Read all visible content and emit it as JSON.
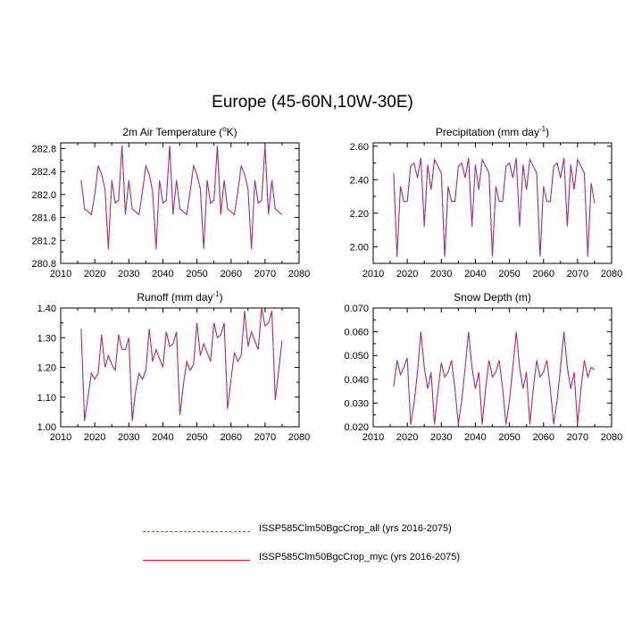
{
  "title": "Europe (45-60N,10W-30E)",
  "colors": {
    "series_all": "#4d4dff",
    "series_myc": "#ff0000",
    "axis": "#000000"
  },
  "legend": [
    {
      "label": "ISSP585Clm50BgcCrop_all (yrs 2016-2075)",
      "style": "dashed",
      "color": "#4d4dff"
    },
    {
      "label": "ISSP585Clm50BgcCrop_myc (yrs 2016-2075)",
      "style": "solid",
      "color": "#ff0000"
    }
  ],
  "chart_data": [
    {
      "type": "line",
      "title": "2m Air Temperature (°K)",
      "title_parts": [
        "2m Air Temperature (",
        "o",
        "K)"
      ],
      "xlim": [
        2010,
        2080
      ],
      "ylim": [
        280.8,
        282.9
      ],
      "xticks": [
        2010,
        2020,
        2030,
        2040,
        2050,
        2060,
        2070,
        2080
      ],
      "yticks": [
        280.8,
        281.2,
        281.6,
        282.0,
        282.4,
        282.8
      ],
      "ytick_labels": [
        "280.8",
        "281.2",
        "281.6",
        "282.0",
        "282.4",
        "282.8"
      ],
      "x": [
        2016,
        2017,
        2018,
        2019,
        2020,
        2021,
        2022,
        2023,
        2024,
        2025,
        2026,
        2027,
        2028,
        2029,
        2030,
        2031,
        2032,
        2033,
        2034,
        2035,
        2036,
        2037,
        2038,
        2039,
        2040,
        2041,
        2042,
        2043,
        2044,
        2045,
        2046,
        2047,
        2048,
        2049,
        2050,
        2051,
        2052,
        2053,
        2054,
        2055,
        2056,
        2057,
        2058,
        2059,
        2060,
        2061,
        2062,
        2063,
        2064,
        2065,
        2066,
        2067,
        2068,
        2069,
        2070,
        2071,
        2072,
        2073,
        2074,
        2075
      ],
      "series": [
        {
          "name": "ISSP585Clm50BgcCrop_all (yrs 2016-2075)",
          "values": [
            282.25,
            281.75,
            281.7,
            281.65,
            282.0,
            282.5,
            282.35,
            282.1,
            281.05,
            282.25,
            281.85,
            281.9,
            282.85,
            281.65,
            282.25,
            281.75,
            281.7,
            281.65,
            282.05,
            282.5,
            282.35,
            282.05,
            281.05,
            282.25,
            281.85,
            281.9,
            282.85,
            281.65,
            282.25,
            281.75,
            281.7,
            281.65,
            282.05,
            282.5,
            282.35,
            282.1,
            281.05,
            282.25,
            281.85,
            281.9,
            282.85,
            281.65,
            282.25,
            281.75,
            281.7,
            281.65,
            282.05,
            282.5,
            282.35,
            282.1,
            281.05,
            282.25,
            281.85,
            281.9,
            282.85,
            281.65,
            282.25,
            281.75,
            281.7,
            281.65
          ]
        },
        {
          "name": "ISSP585Clm50BgcCrop_myc (yrs 2016-2075)",
          "values": [
            282.25,
            281.75,
            281.7,
            281.65,
            282.0,
            282.5,
            282.35,
            282.1,
            281.05,
            282.25,
            281.85,
            281.9,
            282.85,
            281.65,
            282.25,
            281.75,
            281.7,
            281.65,
            282.05,
            282.5,
            282.35,
            282.05,
            281.05,
            282.25,
            281.85,
            281.9,
            282.85,
            281.65,
            282.25,
            281.75,
            281.7,
            281.65,
            282.05,
            282.5,
            282.35,
            282.1,
            281.05,
            282.25,
            281.85,
            281.9,
            282.85,
            281.65,
            282.25,
            281.75,
            281.7,
            281.65,
            282.05,
            282.5,
            282.35,
            282.1,
            281.05,
            282.25,
            281.85,
            281.9,
            282.85,
            281.65,
            282.25,
            281.75,
            281.7,
            281.65
          ]
        }
      ]
    },
    {
      "type": "line",
      "title": "Precipitation (mm day-1)",
      "title_parts": [
        "Precipitation (mm day",
        "-1",
        ")"
      ],
      "xlim": [
        2010,
        2080
      ],
      "ylim": [
        1.9,
        2.62
      ],
      "xticks": [
        2010,
        2020,
        2030,
        2040,
        2050,
        2060,
        2070,
        2080
      ],
      "yticks": [
        2.0,
        2.2,
        2.4,
        2.6
      ],
      "ytick_labels": [
        "2.00",
        "2.20",
        "2.40",
        "2.60"
      ],
      "x": [
        2016,
        2017,
        2018,
        2019,
        2020,
        2021,
        2022,
        2023,
        2024,
        2025,
        2026,
        2027,
        2028,
        2029,
        2030,
        2031,
        2032,
        2033,
        2034,
        2035,
        2036,
        2037,
        2038,
        2039,
        2040,
        2041,
        2042,
        2043,
        2044,
        2045,
        2046,
        2047,
        2048,
        2049,
        2050,
        2051,
        2052,
        2053,
        2054,
        2055,
        2056,
        2057,
        2058,
        2059,
        2060,
        2061,
        2062,
        2063,
        2064,
        2065,
        2066,
        2067,
        2068,
        2069,
        2070,
        2071,
        2072,
        2073,
        2074,
        2075
      ],
      "series": [
        {
          "name": "ISSP585Clm50BgcCrop_all (yrs 2016-2075)",
          "values": [
            2.44,
            1.94,
            2.36,
            2.27,
            2.27,
            2.48,
            2.5,
            2.41,
            2.53,
            2.12,
            2.49,
            2.34,
            2.52,
            2.48,
            2.44,
            1.94,
            2.36,
            2.27,
            2.27,
            2.48,
            2.5,
            2.41,
            2.53,
            2.12,
            2.49,
            2.34,
            2.52,
            2.48,
            2.44,
            1.94,
            2.36,
            2.27,
            2.27,
            2.48,
            2.5,
            2.41,
            2.53,
            2.12,
            2.49,
            2.34,
            2.52,
            2.48,
            2.44,
            1.94,
            2.36,
            2.27,
            2.27,
            2.48,
            2.5,
            2.41,
            2.53,
            2.12,
            2.49,
            2.34,
            2.52,
            2.48,
            2.44,
            1.94,
            2.38,
            2.26
          ]
        },
        {
          "name": "ISSP585Clm50BgcCrop_myc (yrs 2016-2075)",
          "values": [
            2.44,
            1.94,
            2.36,
            2.27,
            2.27,
            2.48,
            2.5,
            2.41,
            2.53,
            2.12,
            2.49,
            2.34,
            2.52,
            2.48,
            2.44,
            1.94,
            2.36,
            2.27,
            2.27,
            2.48,
            2.5,
            2.41,
            2.53,
            2.12,
            2.49,
            2.34,
            2.52,
            2.48,
            2.44,
            1.94,
            2.36,
            2.27,
            2.27,
            2.48,
            2.5,
            2.41,
            2.53,
            2.12,
            2.49,
            2.34,
            2.52,
            2.48,
            2.44,
            1.94,
            2.36,
            2.27,
            2.27,
            2.48,
            2.5,
            2.41,
            2.53,
            2.12,
            2.49,
            2.34,
            2.52,
            2.48,
            2.44,
            1.94,
            2.38,
            2.26
          ]
        }
      ]
    },
    {
      "type": "line",
      "title": "Runoff (mm day-1)",
      "title_parts": [
        "Runoff (mm day",
        "-1",
        ")"
      ],
      "xlim": [
        2010,
        2080
      ],
      "ylim": [
        1.0,
        1.4
      ],
      "xticks": [
        2010,
        2020,
        2030,
        2040,
        2050,
        2060,
        2070,
        2080
      ],
      "yticks": [
        1.0,
        1.1,
        1.2,
        1.3,
        1.4
      ],
      "ytick_labels": [
        "1.00",
        "1.10",
        "1.20",
        "1.30",
        "1.40"
      ],
      "x": [
        2016,
        2017,
        2018,
        2019,
        2020,
        2021,
        2022,
        2023,
        2024,
        2025,
        2026,
        2027,
        2028,
        2029,
        2030,
        2031,
        2032,
        2033,
        2034,
        2035,
        2036,
        2037,
        2038,
        2039,
        2040,
        2041,
        2042,
        2043,
        2044,
        2045,
        2046,
        2047,
        2048,
        2049,
        2050,
        2051,
        2052,
        2053,
        2054,
        2055,
        2056,
        2057,
        2058,
        2059,
        2060,
        2061,
        2062,
        2063,
        2064,
        2065,
        2066,
        2067,
        2068,
        2069,
        2070,
        2071,
        2072,
        2073,
        2074,
        2075
      ],
      "series": [
        {
          "name": "ISSP585Clm50BgcCrop_all (yrs 2016-2075)",
          "values": [
            1.33,
            1.02,
            1.1,
            1.18,
            1.16,
            1.18,
            1.31,
            1.2,
            1.24,
            1.21,
            1.19,
            1.31,
            1.26,
            1.26,
            1.3,
            1.02,
            1.12,
            1.18,
            1.16,
            1.19,
            1.33,
            1.22,
            1.26,
            1.23,
            1.2,
            1.32,
            1.27,
            1.28,
            1.32,
            1.04,
            1.14,
            1.22,
            1.19,
            1.21,
            1.35,
            1.24,
            1.28,
            1.25,
            1.22,
            1.35,
            1.3,
            1.31,
            1.35,
            1.06,
            1.16,
            1.25,
            1.22,
            1.24,
            1.39,
            1.27,
            1.32,
            1.29,
            1.26,
            1.4,
            1.34,
            1.35,
            1.39,
            1.09,
            1.19,
            1.29
          ]
        },
        {
          "name": "ISSP585Clm50BgcCrop_myc (yrs 2016-2075)",
          "values": [
            1.33,
            1.02,
            1.1,
            1.18,
            1.16,
            1.18,
            1.31,
            1.2,
            1.24,
            1.21,
            1.19,
            1.31,
            1.26,
            1.26,
            1.3,
            1.02,
            1.12,
            1.18,
            1.16,
            1.19,
            1.33,
            1.22,
            1.26,
            1.23,
            1.2,
            1.32,
            1.27,
            1.28,
            1.32,
            1.04,
            1.14,
            1.22,
            1.19,
            1.21,
            1.35,
            1.24,
            1.28,
            1.25,
            1.22,
            1.35,
            1.3,
            1.31,
            1.35,
            1.06,
            1.16,
            1.25,
            1.22,
            1.24,
            1.39,
            1.27,
            1.32,
            1.29,
            1.26,
            1.4,
            1.34,
            1.35,
            1.39,
            1.09,
            1.19,
            1.29
          ]
        }
      ]
    },
    {
      "type": "line",
      "title": "Snow Depth (m)",
      "title_parts": [
        "Snow Depth (m)",
        "",
        ""
      ],
      "xlim": [
        2010,
        2080
      ],
      "ylim": [
        0.02,
        0.07
      ],
      "xticks": [
        2010,
        2020,
        2030,
        2040,
        2050,
        2060,
        2070,
        2080
      ],
      "yticks": [
        0.02,
        0.03,
        0.04,
        0.05,
        0.06,
        0.07
      ],
      "ytick_labels": [
        "0.020",
        "0.030",
        "0.040",
        "0.050",
        "0.060",
        "0.070"
      ],
      "x": [
        2016,
        2017,
        2018,
        2019,
        2020,
        2021,
        2022,
        2023,
        2024,
        2025,
        2026,
        2027,
        2028,
        2029,
        2030,
        2031,
        2032,
        2033,
        2034,
        2035,
        2036,
        2037,
        2038,
        2039,
        2040,
        2041,
        2042,
        2043,
        2044,
        2045,
        2046,
        2047,
        2048,
        2049,
        2050,
        2051,
        2052,
        2053,
        2054,
        2055,
        2056,
        2057,
        2058,
        2059,
        2060,
        2061,
        2062,
        2063,
        2064,
        2065,
        2066,
        2067,
        2068,
        2069,
        2070,
        2071,
        2072,
        2073,
        2074,
        2075
      ],
      "series": [
        {
          "name": "ISSP585Clm50BgcCrop_all (yrs 2016-2075)",
          "values": [
            0.037,
            0.048,
            0.042,
            0.045,
            0.049,
            0.021,
            0.03,
            0.043,
            0.06,
            0.045,
            0.036,
            0.043,
            0.021,
            0.035,
            0.047,
            0.041,
            0.043,
            0.048,
            0.036,
            0.021,
            0.031,
            0.045,
            0.06,
            0.045,
            0.036,
            0.043,
            0.021,
            0.036,
            0.048,
            0.041,
            0.043,
            0.048,
            0.036,
            0.021,
            0.031,
            0.045,
            0.06,
            0.045,
            0.036,
            0.043,
            0.021,
            0.036,
            0.048,
            0.041,
            0.043,
            0.048,
            0.036,
            0.021,
            0.031,
            0.045,
            0.06,
            0.045,
            0.036,
            0.043,
            0.021,
            0.036,
            0.048,
            0.041,
            0.045,
            0.044
          ]
        },
        {
          "name": "ISSP585Clm50BgcCrop_myc (yrs 2016-2075)",
          "values": [
            0.037,
            0.048,
            0.042,
            0.045,
            0.049,
            0.021,
            0.03,
            0.043,
            0.06,
            0.045,
            0.036,
            0.043,
            0.021,
            0.035,
            0.047,
            0.041,
            0.043,
            0.048,
            0.036,
            0.021,
            0.031,
            0.045,
            0.06,
            0.045,
            0.036,
            0.043,
            0.021,
            0.036,
            0.048,
            0.041,
            0.043,
            0.048,
            0.036,
            0.021,
            0.031,
            0.045,
            0.06,
            0.045,
            0.036,
            0.043,
            0.021,
            0.036,
            0.048,
            0.041,
            0.043,
            0.048,
            0.036,
            0.021,
            0.031,
            0.045,
            0.06,
            0.045,
            0.036,
            0.043,
            0.021,
            0.036,
            0.048,
            0.041,
            0.045,
            0.044
          ]
        }
      ]
    }
  ]
}
